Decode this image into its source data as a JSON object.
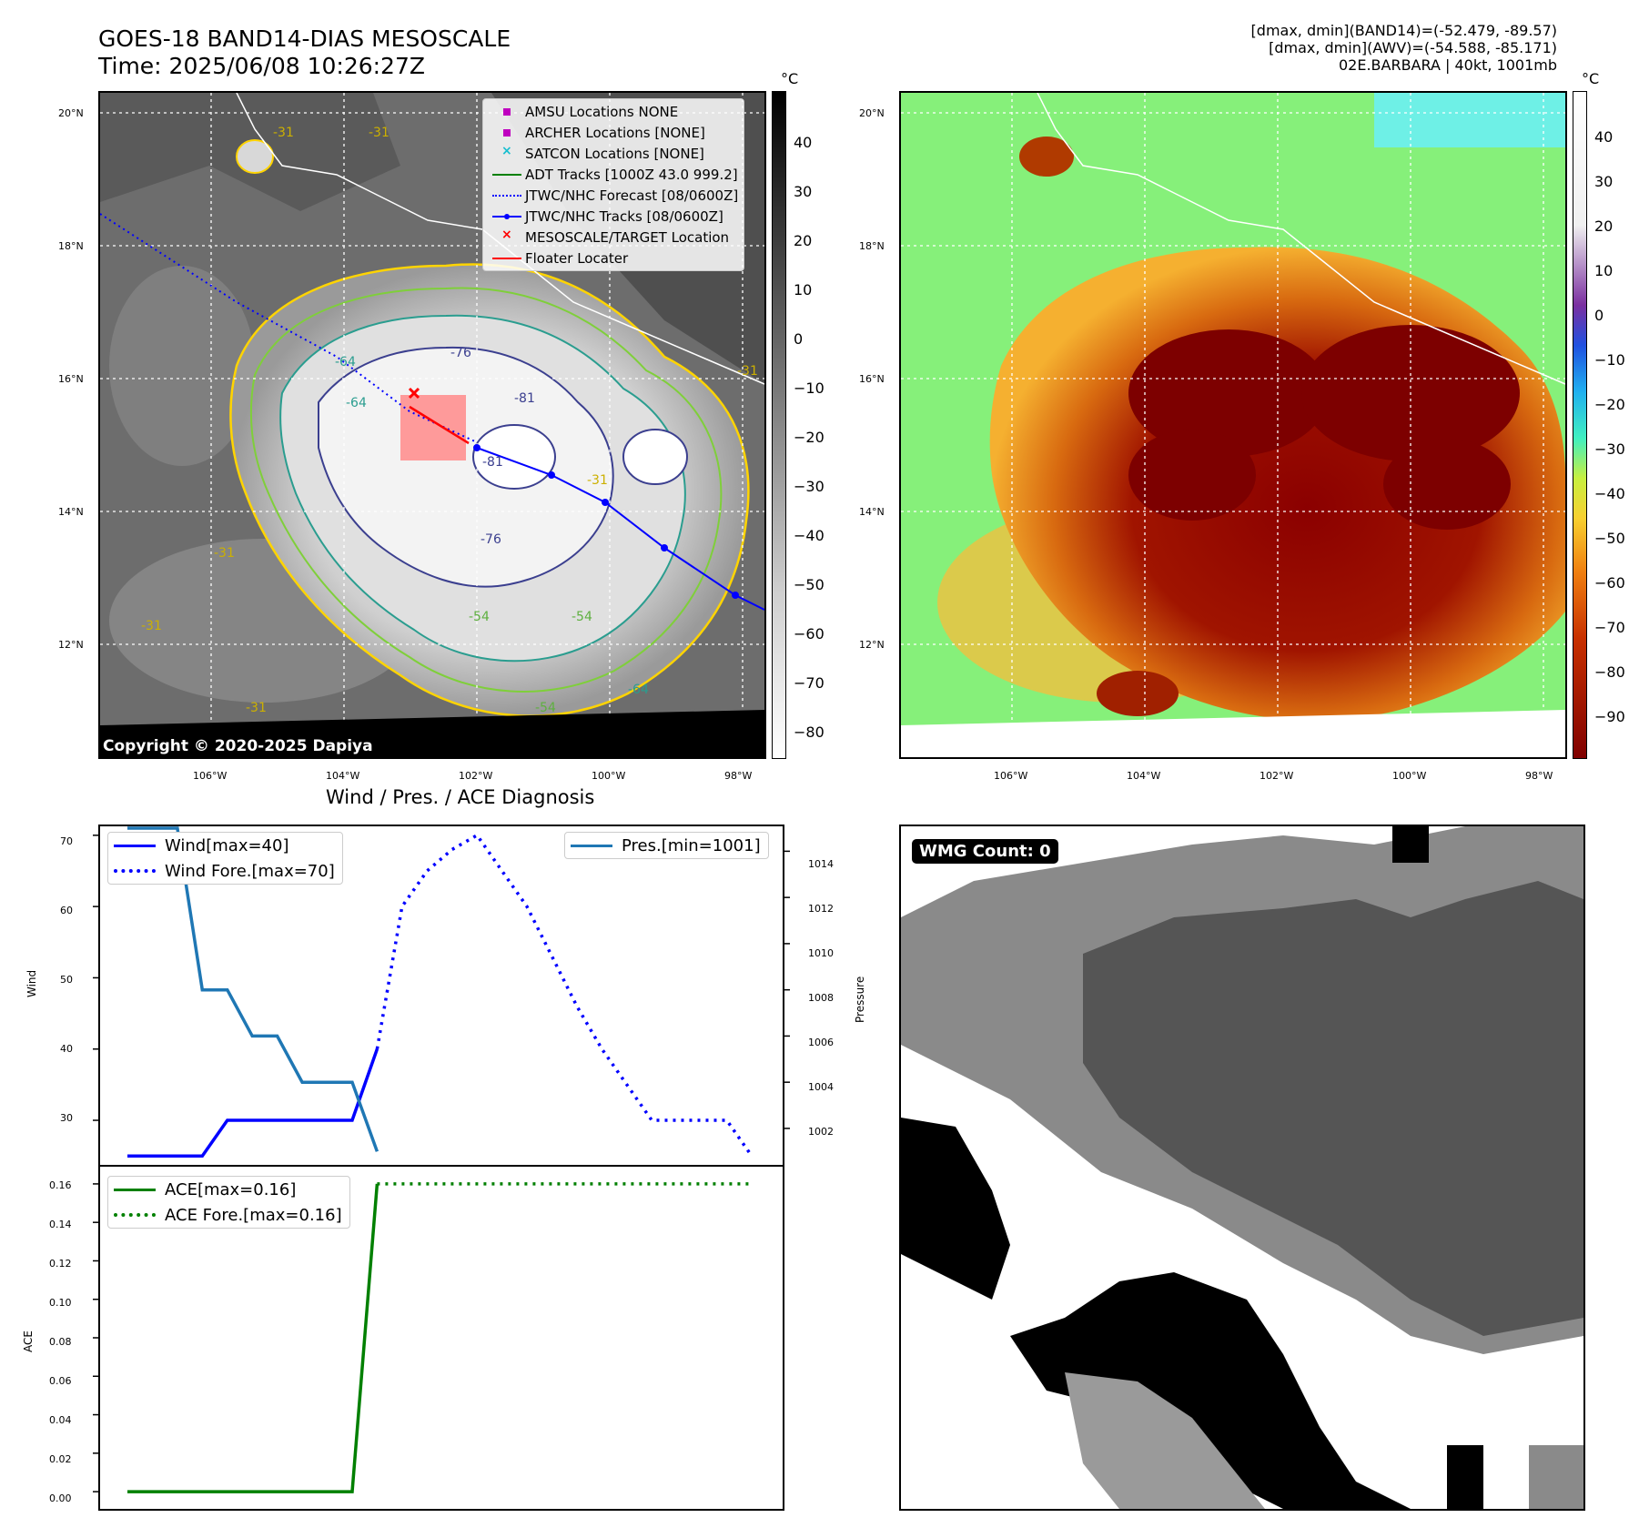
{
  "header": {
    "title_line1": "GOES-18 BAND14-DIAS MESOSCALE",
    "title_line2": "Time: 2025/06/08 10:26:27Z",
    "right_line1": "[dmax, dmin](BAND14)=(-52.479, -89.57)",
    "right_line2": "[dmax, dmin](AWV)=(-54.588, -85.171)",
    "right_line3": "02E.BARBARA | 40kt, 1001mb"
  },
  "map": {
    "lat_labels": [
      "20°N",
      "18°N",
      "16°N",
      "14°N",
      "12°N"
    ],
    "lon_labels": [
      "106°W",
      "104°W",
      "102°W",
      "100°W",
      "98°W"
    ],
    "copyright": "Copyright © 2020-2025 Dapiya",
    "contour_labels": [
      "-31",
      "-31",
      "-31",
      "-31",
      "-31",
      "-54",
      "-54",
      "-64",
      "-64",
      "-76",
      "-76",
      "-81",
      "-81",
      "-31",
      "-54",
      "-64",
      "-31"
    ],
    "legend": [
      {
        "label": "AMSU Locations NONE",
        "symbol": "square",
        "color": "#bf00bf"
      },
      {
        "label": "ARCHER Locations [NONE]",
        "symbol": "square",
        "color": "#bf00bf"
      },
      {
        "label": "SATCON Locations [NONE]",
        "symbol": "x",
        "color": "#17becf"
      },
      {
        "label": "ADT Tracks [1000Z 43.0 999.2]",
        "symbol": "line",
        "color": "#008000"
      },
      {
        "label": "JTWC/NHC Forecast [08/0600Z]",
        "symbol": "dotted",
        "color": "#0000ff"
      },
      {
        "label": "JTWC/NHC Tracks [08/0600Z]",
        "symbol": "line-dot",
        "color": "#0000ff"
      },
      {
        "label": "MESOSCALE/TARGET Location",
        "symbol": "x",
        "color": "#ff0000"
      },
      {
        "label": "Floater Locater",
        "symbol": "line",
        "color": "#ff0000"
      }
    ],
    "colorbar_unit": "°C",
    "colorbar_ticks_gray": [
      "40",
      "30",
      "20",
      "10",
      "0",
      "−10",
      "−20",
      "−30",
      "−40",
      "−50",
      "−60",
      "−70",
      "−80"
    ],
    "colorbar_ticks_color": [
      "40",
      "30",
      "20",
      "10",
      "0",
      "−10",
      "−20",
      "−30",
      "−40",
      "−50",
      "−60",
      "−70",
      "−80",
      "−90"
    ]
  },
  "chart_data": [
    {
      "type": "line",
      "title": "Wind / Pres. / ACE Diagnosis",
      "ylabel": "Wind",
      "ylabel_right": "Pressure",
      "ylim": [
        24,
        71
      ],
      "ylim_right": [
        1000.5,
        1015
      ],
      "yticks": [
        "70",
        "60",
        "50",
        "40",
        "30"
      ],
      "yticks_right": [
        "1014",
        "1012",
        "1010",
        "1008",
        "1006",
        "1004",
        "1002"
      ],
      "series": [
        {
          "name": "Wind[max=40]",
          "color": "#0000ff",
          "style": "solid",
          "axis": "left",
          "x": [
            0,
            1,
            2,
            3,
            4,
            5,
            6,
            7,
            8,
            9,
            10
          ],
          "y": [
            25,
            25,
            25,
            25,
            30,
            30,
            30,
            30,
            30,
            30,
            40
          ]
        },
        {
          "name": "Wind Fore.[max=70]",
          "color": "#0000ff",
          "style": "dotted",
          "axis": "left",
          "x": [
            10,
            11,
            12,
            13,
            14,
            15,
            16,
            17,
            18,
            19,
            20,
            21,
            22,
            23,
            24,
            25
          ],
          "y": [
            40,
            60,
            65,
            68,
            70,
            65,
            60,
            53,
            46,
            40,
            35,
            30,
            30,
            30,
            30,
            25
          ]
        },
        {
          "name": "Pres.[min=1001]",
          "color": "#1f77b4",
          "style": "solid",
          "axis": "right",
          "x": [
            0,
            1,
            2,
            3,
            4,
            5,
            6,
            7,
            8,
            9,
            10
          ],
          "y": [
            1015,
            1015,
            1015,
            1008,
            1008,
            1006,
            1006,
            1004,
            1004,
            1004,
            1001
          ]
        }
      ]
    },
    {
      "type": "line",
      "ylabel": "ACE",
      "ylim": [
        -0.008,
        0.168
      ],
      "yticks": [
        "0.16",
        "0.14",
        "0.12",
        "0.10",
        "0.08",
        "0.06",
        "0.04",
        "0.02",
        "0.00"
      ],
      "series": [
        {
          "name": "ACE[max=0.16]",
          "color": "#008000",
          "style": "solid",
          "x": [
            0,
            1,
            2,
            3,
            4,
            5,
            6,
            7,
            8,
            9,
            10
          ],
          "y": [
            0,
            0,
            0,
            0,
            0,
            0,
            0,
            0,
            0,
            0,
            0.16
          ]
        },
        {
          "name": "ACE Fore.[max=0.16]",
          "color": "#008000",
          "style": "dotted",
          "x": [
            10,
            25
          ],
          "y": [
            0.16,
            0.16
          ]
        }
      ]
    }
  ],
  "wmg": {
    "label": "WMG Count: 0"
  }
}
